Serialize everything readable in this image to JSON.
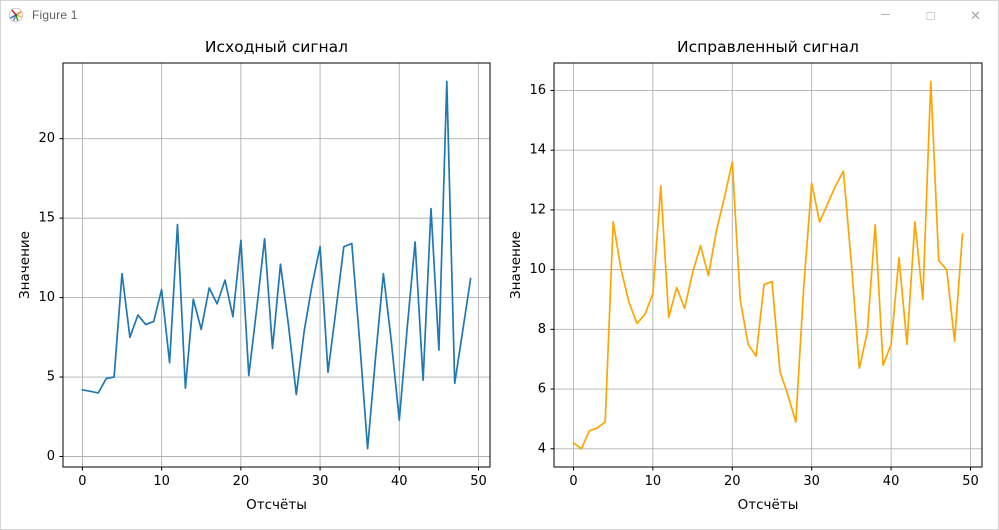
{
  "window": {
    "title": "Figure 1",
    "icons": {
      "app": "matplotlib-logo",
      "minimize": "─",
      "maximize": "□",
      "close": "✕"
    }
  },
  "figure": {
    "background": "#ffffff",
    "grid_color": "#b0b0b0",
    "spine_color": "#000000",
    "text_color": "#000000"
  },
  "chart_data": [
    {
      "id": "original",
      "type": "line",
      "title": "Исходный сигнал",
      "xlabel": "Отсчёты",
      "ylabel": "Значение",
      "line_color": "#1f77b4",
      "grid": true,
      "legend": null,
      "x": [
        0,
        1,
        2,
        3,
        4,
        5,
        6,
        7,
        8,
        9,
        10,
        11,
        12,
        13,
        14,
        15,
        16,
        17,
        18,
        19,
        20,
        21,
        22,
        23,
        24,
        25,
        26,
        27,
        28,
        29,
        30,
        31,
        32,
        33,
        34,
        35,
        36,
        37,
        38,
        39,
        40,
        41,
        42,
        43,
        44,
        45,
        46,
        47,
        48,
        49
      ],
      "values": [
        4.2,
        4.1,
        4.0,
        4.9,
        5.0,
        11.5,
        7.5,
        8.9,
        8.3,
        8.5,
        10.5,
        5.9,
        14.6,
        4.3,
        9.9,
        8.0,
        10.6,
        9.6,
        11.1,
        8.8,
        13.6,
        5.1,
        9.3,
        13.7,
        6.8,
        12.1,
        8.3,
        3.9,
        7.9,
        10.8,
        13.2,
        5.3,
        9.2,
        13.2,
        13.4,
        7.2,
        0.5,
        6.2,
        11.5,
        7.2,
        2.3,
        8.1,
        13.5,
        4.8,
        15.6,
        6.7,
        23.6,
        4.6,
        7.9,
        11.2
      ],
      "xticks": [
        0,
        10,
        20,
        30,
        40,
        50
      ],
      "yticks": [
        0,
        5,
        10,
        15,
        20
      ],
      "xlim": [
        -2.45,
        51.45
      ],
      "ylim": [
        -0.66,
        24.76
      ]
    },
    {
      "id": "corrected",
      "type": "line",
      "title": "Исправленный сигнал",
      "xlabel": "Отсчёты",
      "ylabel": "Значение",
      "line_color": "#ffa500",
      "grid": true,
      "legend": null,
      "x": [
        0,
        1,
        2,
        3,
        4,
        5,
        6,
        7,
        8,
        9,
        10,
        11,
        12,
        13,
        14,
        15,
        16,
        17,
        18,
        19,
        20,
        21,
        22,
        23,
        24,
        25,
        26,
        27,
        28,
        29,
        30,
        31,
        32,
        33,
        34,
        35,
        36,
        37,
        38,
        39,
        40,
        41,
        42,
        43,
        44,
        45,
        46,
        47,
        48,
        49
      ],
      "values": [
        4.2,
        4.0,
        4.6,
        4.7,
        4.9,
        11.6,
        10.0,
        8.9,
        8.2,
        8.5,
        9.2,
        12.8,
        8.4,
        9.4,
        8.7,
        9.9,
        10.8,
        9.8,
        11.3,
        12.4,
        13.6,
        9.0,
        7.5,
        7.1,
        9.5,
        9.6,
        6.6,
        5.8,
        4.9,
        9.4,
        12.9,
        11.6,
        12.2,
        12.8,
        13.3,
        10.2,
        6.7,
        7.9,
        11.5,
        6.8,
        7.5,
        10.4,
        7.5,
        11.6,
        9.0,
        16.3,
        10.3,
        10.0,
        7.6,
        11.2
      ],
      "xticks": [
        0,
        10,
        20,
        30,
        40,
        50
      ],
      "yticks": [
        4,
        6,
        8,
        10,
        12,
        14,
        16
      ],
      "xlim": [
        -2.45,
        51.45
      ],
      "ylim": [
        3.39,
        16.92
      ]
    }
  ]
}
